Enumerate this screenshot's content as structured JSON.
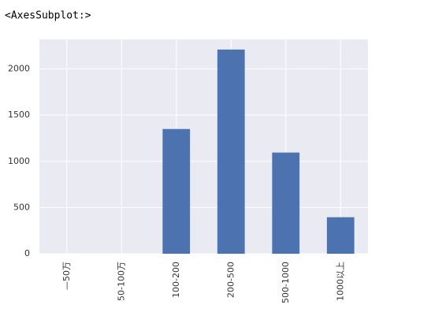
{
  "output": "<AxesSubplot:>",
  "chart_data": {
    "type": "bar",
    "categories": [
      "—50万",
      "50-100万",
      "100-200",
      "200-500",
      "500-1000",
      "1000以上"
    ],
    "values": [
      0,
      0,
      1350,
      2210,
      1095,
      395
    ],
    "color": "#4c72b0",
    "ylim": [
      0,
      2320
    ],
    "yticks": [
      0,
      500,
      1000,
      1500,
      2000
    ],
    "grid": true
  }
}
